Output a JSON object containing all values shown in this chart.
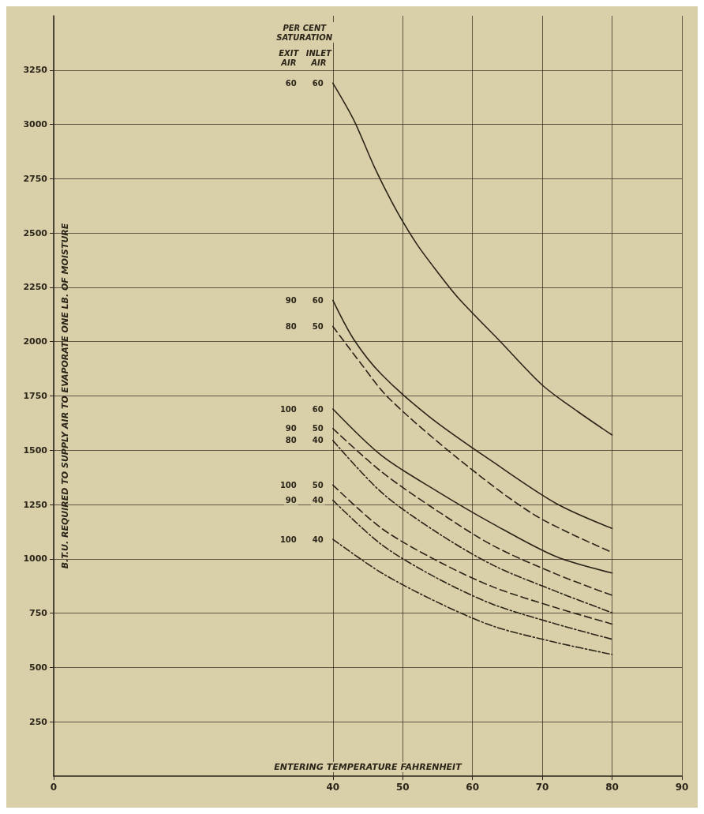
{
  "chart_data": {
    "type": "line",
    "xlabel": "ENTERING TEMPERATURE FAHRENHEIT",
    "ylabel": "B.T.U. REQUIRED TO SUPPLY AIR TO EVAPORATE ONE LB. OF MOISTURE",
    "xlim": [
      0,
      90
    ],
    "xticks": [
      0,
      40,
      50,
      60,
      70,
      80,
      90
    ],
    "ylim": [
      0,
      3500
    ],
    "yticks": [
      250,
      500,
      750,
      1000,
      1250,
      1500,
      1750,
      2000,
      2250,
      2500,
      2750,
      3000,
      3250
    ],
    "grid": true,
    "marker": "none",
    "series": [
      {
        "color": "#2b2418",
        "line_style": "solid",
        "x": [
          40,
          43,
          46,
          49,
          52,
          55,
          58,
          64,
          70,
          75,
          80
        ],
        "values": [
          3190,
          3020,
          2800,
          2610,
          2450,
          2320,
          2200,
          2000,
          1800,
          1680,
          1570
        ]
      },
      {
        "color": "#2b2418",
        "line_style": "solid",
        "x": [
          40,
          43,
          47,
          54,
          63,
          72,
          80
        ],
        "values": [
          2190,
          2010,
          1848,
          1650,
          1445,
          1255,
          1140
        ]
      },
      {
        "color": "#2b2418",
        "line_style": "dashed",
        "x": [
          40,
          44,
          48,
          58,
          69,
          80
        ],
        "values": [
          2070,
          1900,
          1740,
          1460,
          1200,
          1030
        ]
      },
      {
        "color": "#2b2418",
        "line_style": "solid",
        "x": [
          40,
          47,
          55,
          63,
          72,
          80
        ],
        "values": [
          1690,
          1475,
          1310,
          1160,
          1010,
          935
        ]
      },
      {
        "color": "#2b2418",
        "line_style": "dashed",
        "x": [
          40,
          47,
          55,
          63,
          72,
          80
        ],
        "values": [
          1600,
          1400,
          1220,
          1060,
          930,
          832
        ]
      },
      {
        "color": "#2b2418",
        "line_style": "dashdot",
        "x": [
          40,
          47,
          55,
          63,
          72,
          80
        ],
        "values": [
          1545,
          1305,
          1120,
          970,
          850,
          752
        ]
      },
      {
        "color": "#2b2418",
        "line_style": "dashed",
        "x": [
          40,
          47,
          55,
          63,
          72,
          80
        ],
        "values": [
          1340,
          1140,
          990,
          870,
          775,
          700
        ]
      },
      {
        "color": "#2b2418",
        "line_style": "dashdot",
        "x": [
          40,
          47,
          55,
          63,
          72,
          80
        ],
        "values": [
          1270,
          1065,
          910,
          790,
          700,
          630
        ]
      },
      {
        "color": "#2b2418",
        "line_style": "dashdot",
        "x": [
          40,
          47,
          55,
          63,
          72,
          80
        ],
        "values": [
          1090,
          935,
          800,
          690,
          615,
          560
        ]
      }
    ],
    "annotations": [
      "PER CENT SATURATION",
      "EXIT AIR",
      "INLET AIR",
      "60",
      "60",
      "90",
      "60",
      "80",
      "50",
      "100",
      "60",
      "90",
      "50",
      "80",
      "40",
      "100",
      "50",
      "90",
      "40",
      "100",
      "40"
    ]
  }
}
